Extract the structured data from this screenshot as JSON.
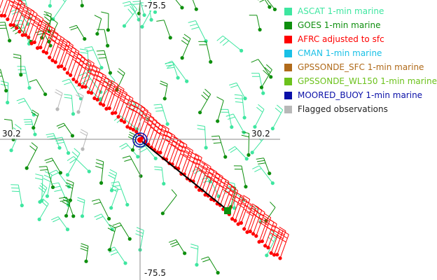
{
  "axes": {
    "top_label": "-75.5",
    "bottom_label": "-75.5",
    "left_label": "30.2",
    "right_label": "30.2"
  },
  "legend": {
    "items": [
      {
        "label": "ASCAT 1-min marine",
        "color": "#3ee6a0",
        "text_color": "#3ee6a0"
      },
      {
        "label": "GOES 1-min marine",
        "color": "#0e8f0e",
        "text_color": "#0e8f0e"
      },
      {
        "label": "AFRC adjusted to sfc",
        "color": "#ff0000",
        "text_color": "#ff0000"
      },
      {
        "label": "CMAN 1-min marine",
        "color": "#19c0e6",
        "text_color": "#19c0e6"
      },
      {
        "label": "GPSSONDE_SFC 1-min marine",
        "color": "#b06a1a",
        "text_color": "#b06a1a"
      },
      {
        "label": "GPSSONDE_WL150 1-min marine",
        "color": "#6cc21c",
        "text_color": "#6cc21c"
      },
      {
        "label": "MOORED_BUOY 1-min marine",
        "color": "#0a10a8",
        "text_color": "#0a10a8"
      },
      {
        "label": "Flagged observations",
        "color": "#b8b8b8",
        "text_color": "#222222"
      }
    ]
  },
  "colors": {
    "ascat": "#3ee6a0",
    "goes": "#0e8f0e",
    "afrc": "#ff0000",
    "flagged": "#b8b8b8",
    "buoy": "#0a10a8",
    "track": "#000000",
    "crosshair": "#888888"
  }
}
